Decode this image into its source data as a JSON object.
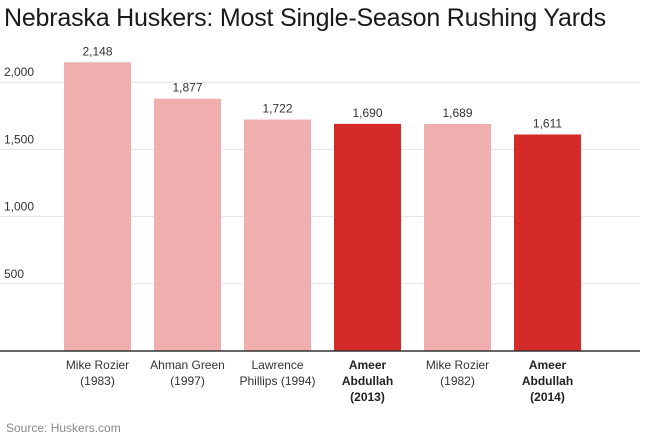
{
  "chart_data": {
    "type": "bar",
    "title": "Nebraska Huskers: Most Single-Season Rushing Yards",
    "categories": [
      [
        "Mike Rozier",
        "(1983)"
      ],
      [
        "Ahman Green",
        "(1997)"
      ],
      [
        "Lawrence",
        "Phillips (1994)"
      ],
      [
        "Ameer",
        "Abdullah",
        "(2013)"
      ],
      [
        "Mike Rozier",
        "(1982)"
      ],
      [
        "Ameer",
        "Abdullah",
        "(2014)"
      ]
    ],
    "values": [
      2148,
      1877,
      1722,
      1690,
      1689,
      1611
    ],
    "value_labels": [
      "2,148",
      "1,877",
      "1,722",
      "1,690",
      "1,689",
      "1,611"
    ],
    "highlighted": [
      false,
      false,
      false,
      true,
      false,
      true
    ],
    "colors": {
      "normal": "#f0aeae",
      "highlight": "#d42a2a",
      "grid": "#e3e3e3",
      "axis": "#333333"
    },
    "yticks": [
      500,
      1000,
      1500,
      2000
    ],
    "ytick_labels": [
      "500",
      "1,000",
      "1,500",
      "2,000"
    ],
    "ylim": [
      0,
      2500
    ],
    "grid": true,
    "source": "Source: Huskers.com"
  }
}
